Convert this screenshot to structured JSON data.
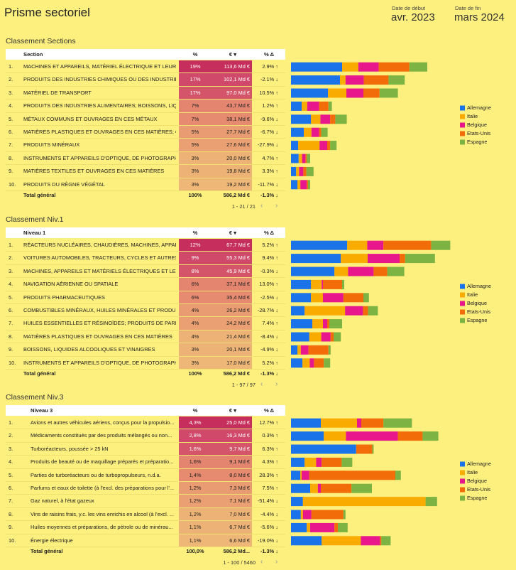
{
  "title": "Prisme sectoriel",
  "date_start": {
    "label": "Date de début",
    "value": "avr. 2023"
  },
  "date_end": {
    "label": "Date de fin",
    "value": "mars 2024"
  },
  "sections": [
    {
      "title": "Classement Sections",
      "columns": [
        "Section",
        "%",
        "€ ▾",
        "% Δ"
      ],
      "rows": [
        [
          "1.",
          "MACHINES ET APPAREILS, MATÉRIEL ÉLECTRIQUE ET LEURS ...",
          "19%",
          "113,6 Md €",
          "2.9% ↑"
        ],
        [
          "2.",
          "PRODUITS DES INDUSTRIES CHIMIQUES OU DES INDUSTRIES...",
          "17%",
          "102,1 Md €",
          "-2.1% ↓"
        ],
        [
          "3.",
          "MATÉRIEL DE TRANSPORT",
          "17%",
          "97,0 Md €",
          "10.5% ↑"
        ],
        [
          "4.",
          "PRODUITS DES INDUSTRIES ALIMENTAIRES; BOISSONS, LIQUI...",
          "7%",
          "43,7 Md €",
          "1.2% ↑"
        ],
        [
          "5.",
          "MÉTAUX COMMUNS ET OUVRAGES EN CES MÉTAUX",
          "7%",
          "38,1 Md €",
          "-9.6% ↓"
        ],
        [
          "6.",
          "MATIÈRES PLASTIQUES ET OUVRAGES EN CES MATIÈRES; C...",
          "5%",
          "27,7 Md €",
          "-6.7% ↓"
        ],
        [
          "7.",
          "PRODUITS MINÉRAUX",
          "5%",
          "27,6 Md €",
          "-27.9% ↓"
        ],
        [
          "8.",
          "INSTRUMENTS ET APPAREILS D'OPTIQUE, DE PHOTOGRAPHI...",
          "3%",
          "20,0 Md €",
          "4.7% ↑"
        ],
        [
          "9.",
          "MATIÈRES TEXTILES ET OUVRAGES EN CES MATIÈRES",
          "3%",
          "19,8 Md €",
          "3.3% ↑"
        ],
        [
          "10.",
          "PRODUITS DU RÈGNE VÉGÉTAL",
          "3%",
          "19,2 Md €",
          "-11.7% ↓"
        ]
      ],
      "total": [
        "Total général",
        "100%",
        "586,2 Md €",
        "-1.3% ↓"
      ],
      "pagination": "1 - 21 / 21"
    },
    {
      "title": "Classement Niv.1",
      "columns": [
        "Niveau 1",
        "%",
        "€ ▾",
        "% Δ"
      ],
      "rows": [
        [
          "1.",
          "RÉACTEURS NUCLÉAIRES, CHAUDIÈRES, MACHINES, APPAR...",
          "12%",
          "67,7 Md €",
          "5.2% ↑"
        ],
        [
          "2.",
          "VOITURES AUTOMOBILES, TRACTEURS, CYCLES ET AUTRES ...",
          "9%",
          "55,3 Md €",
          "9.4% ↑"
        ],
        [
          "3.",
          "MACHINES, APPAREILS ET MATÉRIELS ÉLECTRIQUES ET LE...",
          "8%",
          "45,9 Md €",
          "-0.3% ↓"
        ],
        [
          "4.",
          "NAVIGATION AÉRIENNE OU SPATIALE",
          "6%",
          "37,1 Md €",
          "13.0% ↑"
        ],
        [
          "5.",
          "PRODUITS PHARMACEUTIQUES",
          "6%",
          "35,4 Md €",
          "-2.5% ↓"
        ],
        [
          "6.",
          "COMBUSTIBLES MINÉRAUX, HUILES MINÉRALES ET PRODUI...",
          "4%",
          "26,2 Md €",
          "-28.7% ↓"
        ],
        [
          "7.",
          "HUILES ESSENTIELLES ET RÉSINOÏDES; PRODUITS DE PARFU...",
          "4%",
          "24,2 Md €",
          "7.4% ↑"
        ],
        [
          "8.",
          "MATIÈRES PLASTIQUES ET OUVRAGES EN CES MATIÈRES",
          "4%",
          "21,4 Md €",
          "-8.4% ↓"
        ],
        [
          "9.",
          "BOISSONS, LIQUIDES ALCOOLIQUES ET VINAIGRES",
          "3%",
          "20,1 Md €",
          "-4.9% ↓"
        ],
        [
          "10.",
          "INSTRUMENTS ET APPAREILS D'OPTIQUE, DE PHOTOGRAPH...",
          "3%",
          "17,0 Md €",
          "5.2% ↑"
        ]
      ],
      "total": [
        "Total général",
        "100%",
        "586,2 Md €",
        "-1.3% ↓"
      ],
      "pagination": "1 - 97 / 97"
    },
    {
      "title": "Classement Niv.3",
      "columns": [
        "Niveau 3",
        "%",
        "€ ▾",
        "% Δ"
      ],
      "rows": [
        [
          "1.",
          "Avions et autres véhicules aériens, conçus pour la propulsio...",
          "4,3%",
          "25,0 Md €",
          "12.7% ↑"
        ],
        [
          "2.",
          "Médicaments constitués par des produits mélangés ou non...",
          "2,8%",
          "16,3 Md €",
          "0.3% ↑"
        ],
        [
          "3.",
          "Turboréacteurs, poussée > 25 kN",
          "1,6%",
          "9,7 Md €",
          "6.3% ↑"
        ],
        [
          "4.",
          "Produits de beauté ou de maquillage préparés et préparatio...",
          "1,6%",
          "9,1 Md €",
          "4.3% ↑"
        ],
        [
          "5.",
          "Parties de turboréacteurs ou de turbopropulseurs, n.d.a.",
          "1,4%",
          "8,0 Md €",
          "28.3% ↑"
        ],
        [
          "6.",
          "Parfums et eaux de toilette (à l'excl. des préparations pour l'...",
          "1,2%",
          "7,3 Md €",
          "7.5% ↑"
        ],
        [
          "7.",
          "Gaz naturel, à l'état gazeux",
          "1,2%",
          "7,1 Md €",
          "-51.4% ↓"
        ],
        [
          "8.",
          "Vins de raisins frais, y.c. les vins enrichis en alcool (à l'excl. ...",
          "1,2%",
          "7,0 Md €",
          "-4.4% ↓"
        ],
        [
          "9.",
          "Huiles moyennes et préparations, de pétrole ou de minérau...",
          "1,1%",
          "6,7 Md €",
          "-5.6% ↓"
        ],
        [
          "10.",
          "Énergie électrique",
          "1,1%",
          "6,6 Md €",
          "-19.0% ↓"
        ]
      ],
      "total": [
        "Total général",
        "100,0%",
        "586,2 Md...",
        "-1.3% ↓"
      ],
      "pagination": "1 - 100 / 5460"
    }
  ],
  "chart_data": [
    {
      "type": "bar",
      "orientation": "horizontal",
      "stacked": true,
      "xlim": [
        0,
        50
      ],
      "legend": "right",
      "series": [
        {
          "name": "Allemagne",
          "color": "#1a73e8",
          "values": [
            12,
            11.5,
            8.7,
            2.5,
            4.7,
            3,
            1.7,
            1.8,
            1.2,
            1.5
          ]
        },
        {
          "name": "Italie",
          "color": "#f9ab00",
          "values": [
            3.8,
            1.3,
            4.3,
            1.3,
            2.2,
            1.8,
            5,
            0.8,
            0.7,
            0.7
          ]
        },
        {
          "name": "Belgique",
          "color": "#e8178c",
          "values": [
            4.8,
            4.3,
            4,
            2.8,
            2.3,
            1.8,
            1.8,
            0.8,
            1,
            1.5
          ]
        },
        {
          "name": "Etats-Unis",
          "color": "#f36c0a",
          "values": [
            7.2,
            5.8,
            3.8,
            2.2,
            1.2,
            0.5,
            0.7,
            0.3,
            0.7,
            0.3
          ]
        },
        {
          "name": "Espagne",
          "color": "#7cb342",
          "values": [
            4.2,
            3.8,
            4.3,
            0.8,
            2.7,
            1.5,
            1.5,
            0.8,
            1.7,
            0.5
          ]
        }
      ]
    },
    {
      "type": "bar",
      "orientation": "horizontal",
      "stacked": true,
      "xlim": [
        0,
        50
      ],
      "legend": "right",
      "series": [
        {
          "name": "Allemagne",
          "color": "#1a73e8",
          "values": [
            13.2,
            11.7,
            10.2,
            4.7,
            4.7,
            3.2,
            5,
            4.3,
            1.5,
            2.7
          ]
        },
        {
          "name": "Italie",
          "color": "#f9ab00",
          "values": [
            4.7,
            6.3,
            3.2,
            2.5,
            2.8,
            9.5,
            2.5,
            2.8,
            0.8,
            1.7
          ]
        },
        {
          "name": "Belgique",
          "color": "#e8178c",
          "values": [
            3.8,
            7.5,
            6,
            0.3,
            4.8,
            4.2,
            1,
            2.2,
            1.8,
            1
          ]
        },
        {
          "name": "Etats-Unis",
          "color": "#f36c0a",
          "values": [
            11.2,
            1.3,
            3.2,
            4.5,
            4.7,
            1.2,
            0.5,
            0.7,
            4.7,
            2.3
          ]
        },
        {
          "name": "Espagne",
          "color": "#7cb342",
          "values": [
            4.5,
            7,
            4,
            0.5,
            1.3,
            2.3,
            3,
            1.7,
            0.5,
            1.5
          ]
        }
      ]
    },
    {
      "type": "bar",
      "orientation": "horizontal",
      "stacked": true,
      "xlim": [
        0,
        50
      ],
      "legend": "right",
      "series": [
        {
          "name": "Allemagne",
          "color": "#1a73e8",
          "values": [
            7,
            7.7,
            15.3,
            3.2,
            2.2,
            4.5,
            2.8,
            2.3,
            3.7,
            7.2
          ]
        },
        {
          "name": "Italie",
          "color": "#f9ab00",
          "values": [
            8.5,
            5.2,
            0,
            2.7,
            0.3,
            1.8,
            28.8,
            0.5,
            0.8,
            9.2
          ]
        },
        {
          "name": "Belgique",
          "color": "#e8178c",
          "values": [
            1,
            12.2,
            0,
            1.3,
            1.8,
            0.7,
            0,
            2,
            5.7,
            4.5
          ]
        },
        {
          "name": "Etats-Unis",
          "color": "#f36c0a",
          "values": [
            5.2,
            5.8,
            3.8,
            4.7,
            20.2,
            7.2,
            0,
            7.5,
            0.8,
            0.3
          ]
        },
        {
          "name": "Espagne",
          "color": "#7cb342",
          "values": [
            6.7,
            3.7,
            0.3,
            2.5,
            1.3,
            4.8,
            2.7,
            0.5,
            2.3,
            2.2
          ]
        }
      ]
    }
  ]
}
